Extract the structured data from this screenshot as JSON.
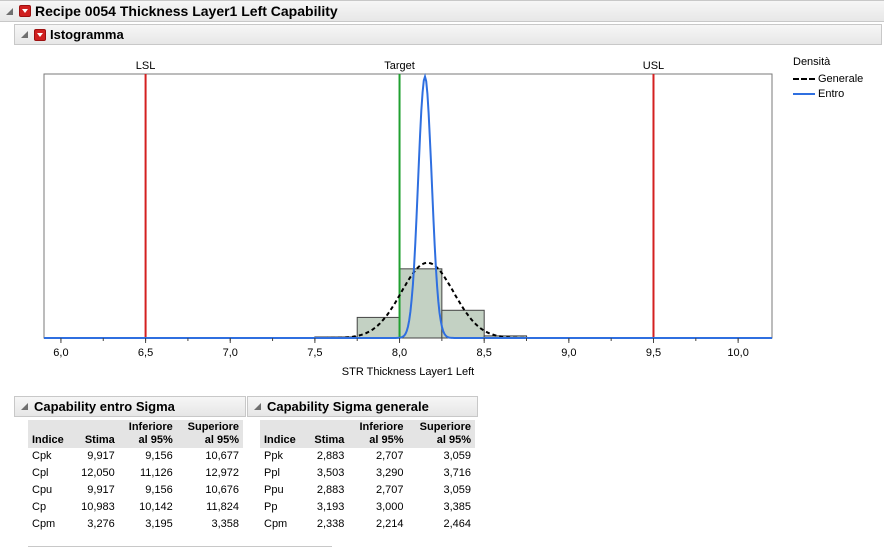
{
  "report": {
    "title": "Recipe 0054 Thickness Layer1 Left Capability",
    "section_title": "Istogramma"
  },
  "legend": {
    "title": "Densità",
    "items": [
      {
        "label": "Generale",
        "style": "dashed",
        "color": "#000000"
      },
      {
        "label": "Entro",
        "style": "solid",
        "color": "#2f6fe0"
      }
    ]
  },
  "chart_data": {
    "type": "histogram",
    "xlabel": "STR Thickness Layer1 Left",
    "xlim": [
      5.9,
      10.2
    ],
    "x_ticks": [
      6.0,
      6.5,
      7.0,
      7.5,
      8.0,
      8.5,
      9.0,
      9.5,
      10.0
    ],
    "x_tick_labels": [
      "6,0",
      "6,5",
      "7,0",
      "7,5",
      "8,0",
      "8,5",
      "9,0",
      "9,5",
      "10,0"
    ],
    "bins": [
      {
        "from": 7.5,
        "to": 7.75,
        "height": 0.004
      },
      {
        "from": 7.75,
        "to": 8.0,
        "height": 0.078
      },
      {
        "from": 8.0,
        "to": 8.25,
        "height": 0.262
      },
      {
        "from": 8.25,
        "to": 8.5,
        "height": 0.105
      },
      {
        "from": 8.5,
        "to": 8.75,
        "height": 0.008
      }
    ],
    "bar_color": "#c3d1c3",
    "spec_lines": [
      {
        "label": "LSL",
        "x": 6.5,
        "color": "#d42020"
      },
      {
        "label": "Target",
        "x": 8.0,
        "color": "#20a030"
      },
      {
        "label": "USL",
        "x": 9.5,
        "color": "#d42020"
      }
    ],
    "density_curves": [
      {
        "name": "Generale",
        "mean": 8.165,
        "sd": 0.155,
        "peak_fraction": 0.285,
        "style": "dashed",
        "color": "#000000"
      },
      {
        "name": "Entro",
        "mean": 8.15,
        "sd": 0.04,
        "peak_fraction": 0.99,
        "style": "solid",
        "color": "#2f6fe0"
      }
    ],
    "grid": false
  },
  "tables": [
    {
      "title": "Capability entro Sigma",
      "headers": [
        "Indice",
        "Stima",
        "Inferiore al 95%",
        "Superiore al 95%"
      ],
      "header_lines": [
        [
          "Indice"
        ],
        [
          "Stima"
        ],
        [
          "Inferiore",
          "al 95%"
        ],
        [
          "Superiore",
          "al 95%"
        ]
      ],
      "rows": [
        [
          "Cpk",
          "9,917",
          "9,156",
          "10,677"
        ],
        [
          "Cpl",
          "12,050",
          "11,126",
          "12,972"
        ],
        [
          "Cpu",
          "9,917",
          "9,156",
          "10,676"
        ],
        [
          "Cp",
          "10,983",
          "10,142",
          "11,824"
        ],
        [
          "Cpm",
          "3,276",
          "3,195",
          "3,358"
        ]
      ]
    },
    {
      "title": "Capability Sigma generale",
      "headers": [
        "Indice",
        "Stima",
        "Inferiore al 95%",
        "Superiore al 95%"
      ],
      "header_lines": [
        [
          "Indice"
        ],
        [
          "Stima"
        ],
        [
          "Inferiore",
          "al 95%"
        ],
        [
          "Superiore",
          "al 95%"
        ]
      ],
      "rows": [
        [
          "Ppk",
          "2,883",
          "2,707",
          "3,059"
        ],
        [
          "Ppl",
          "3,503",
          "3,290",
          "3,716"
        ],
        [
          "Ppu",
          "2,883",
          "2,707",
          "3,059"
        ],
        [
          "Pp",
          "3,193",
          "3,000",
          "3,385"
        ],
        [
          "Cpm",
          "2,338",
          "2,214",
          "2,464"
        ]
      ]
    }
  ]
}
